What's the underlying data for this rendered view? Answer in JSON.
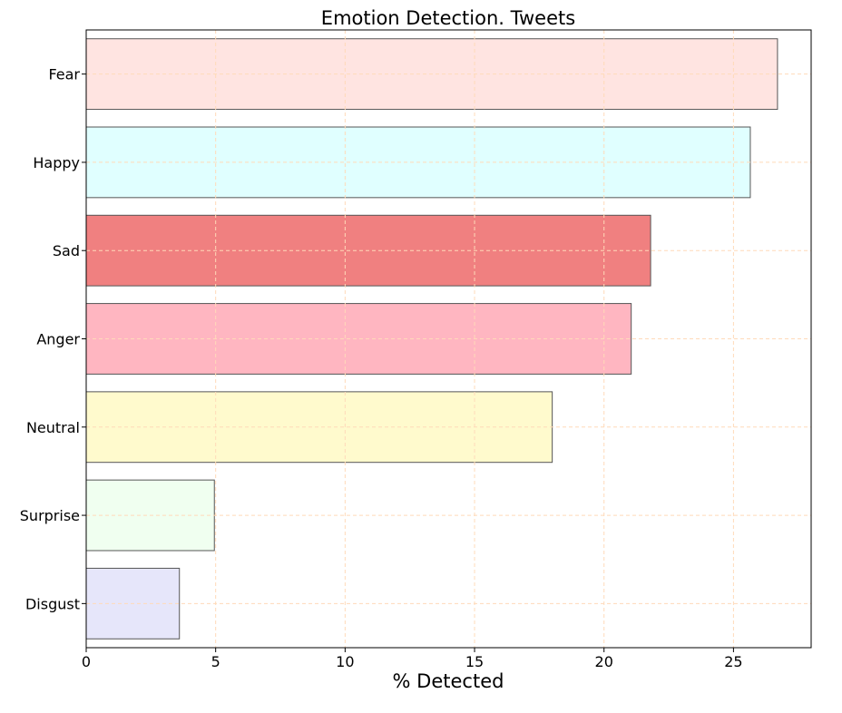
{
  "chart_data": {
    "type": "bar",
    "orientation": "horizontal",
    "title": "Emotion Detection. Tweets",
    "xlabel": "% Detected",
    "ylabel": "",
    "xlim": [
      0,
      28
    ],
    "xticks": [
      0,
      5,
      10,
      15,
      20,
      25
    ],
    "grid": true,
    "categories": [
      "Fear",
      "Happy",
      "Sad",
      "Anger",
      "Neutral",
      "Surprise",
      "Disgust"
    ],
    "values": [
      26.7,
      25.65,
      21.8,
      21.05,
      18.0,
      4.95,
      3.6
    ],
    "colors": [
      "#ffe4e1",
      "#e0ffff",
      "#f08080",
      "#ffb6c1",
      "#fffacd",
      "#f0fff0",
      "#e6e6fa"
    ],
    "grid_color": "#ffdab9"
  }
}
